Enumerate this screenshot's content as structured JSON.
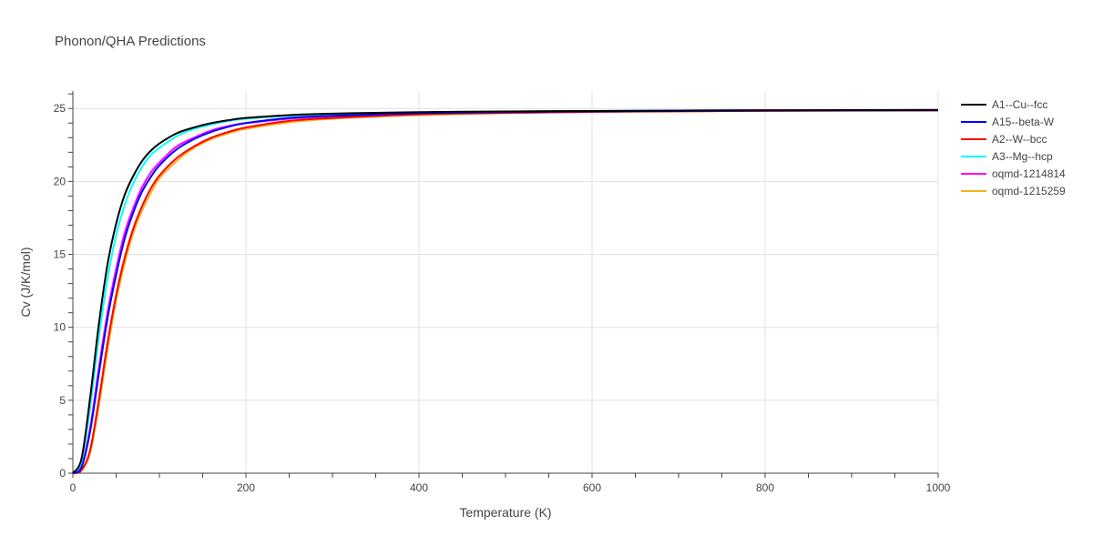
{
  "chart_data": {
    "type": "line",
    "title": "Phonon/QHA Predictions",
    "xlabel": "Temperature (K)",
    "ylabel": "Cv (J/K/mol)",
    "xlim": [
      0,
      1000
    ],
    "ylim": [
      0,
      26.2
    ],
    "x_ticks": [
      0,
      200,
      400,
      600,
      800,
      1000
    ],
    "y_ticks": [
      0,
      5,
      10,
      15,
      20,
      25
    ],
    "grid": true,
    "legend_position": "right",
    "x": [
      0,
      10,
      20,
      30,
      40,
      50,
      60,
      70,
      80,
      90,
      100,
      120,
      140,
      160,
      180,
      200,
      250,
      300,
      400,
      500,
      600,
      700,
      800,
      900,
      1000
    ],
    "series": [
      {
        "name": "A1--Cu--fcc",
        "color": "#000000",
        "values": [
          0,
          1.0,
          5.2,
          10.2,
          14.3,
          17.1,
          19.1,
          20.4,
          21.4,
          22.1,
          22.6,
          23.3,
          23.7,
          24.0,
          24.2,
          24.35,
          24.55,
          24.65,
          24.75,
          24.8,
          24.83,
          24.86,
          24.88,
          24.89,
          24.9
        ]
      },
      {
        "name": "A15--beta-W",
        "color": "#0000ff",
        "values": [
          0,
          0.4,
          2.9,
          6.8,
          10.6,
          13.6,
          16.1,
          17.9,
          19.3,
          20.3,
          21.1,
          22.2,
          22.9,
          23.4,
          23.75,
          24.0,
          24.35,
          24.5,
          24.68,
          24.75,
          24.8,
          24.83,
          24.86,
          24.87,
          24.88
        ]
      },
      {
        "name": "A2--W--bcc",
        "color": "#ff0000",
        "values": [
          0,
          0.2,
          1.6,
          5.0,
          8.9,
          12.2,
          14.8,
          16.8,
          18.3,
          19.5,
          20.4,
          21.6,
          22.4,
          23.0,
          23.4,
          23.7,
          24.15,
          24.35,
          24.6,
          24.7,
          24.77,
          24.81,
          24.84,
          24.86,
          24.87
        ]
      },
      {
        "name": "A3--Mg--hcp",
        "color": "#00ffff",
        "values": [
          0,
          0.8,
          4.5,
          9.3,
          13.3,
          16.3,
          18.4,
          19.9,
          21.0,
          21.8,
          22.3,
          23.1,
          23.6,
          23.9,
          24.15,
          24.3,
          24.5,
          24.62,
          24.73,
          24.79,
          24.83,
          24.86,
          24.87,
          24.89,
          24.9
        ]
      },
      {
        "name": "oqmd-1214814",
        "color": "#ff00ff",
        "values": [
          0,
          0.5,
          3.1,
          7.2,
          11.0,
          14.0,
          16.5,
          18.2,
          19.6,
          20.6,
          21.3,
          22.4,
          23.0,
          23.5,
          23.8,
          24.0,
          24.3,
          24.48,
          24.66,
          24.74,
          24.79,
          24.82,
          24.85,
          24.86,
          24.87
        ]
      },
      {
        "name": "oqmd-1215259",
        "color": "#f5b21b",
        "values": [
          0,
          0.2,
          1.4,
          4.6,
          8.4,
          11.8,
          14.4,
          16.5,
          18.0,
          19.2,
          20.2,
          21.4,
          22.3,
          22.9,
          23.3,
          23.6,
          24.05,
          24.3,
          24.55,
          24.68,
          24.75,
          24.8,
          24.83,
          24.85,
          24.86
        ]
      }
    ]
  }
}
